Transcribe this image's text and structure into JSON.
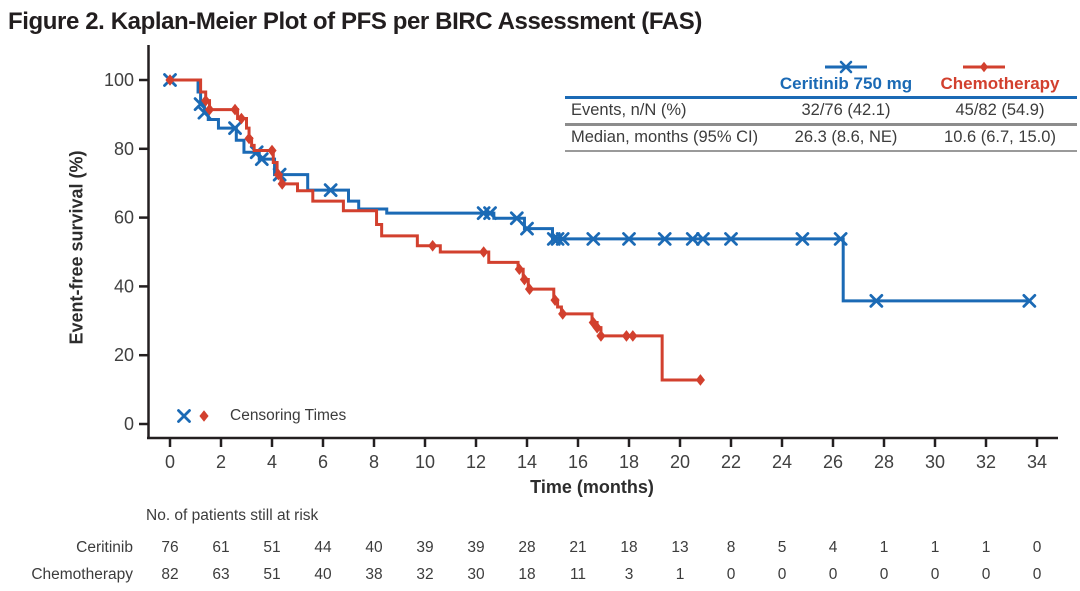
{
  "figure": {
    "title": "Figure 2. Kaplan-Meier Plot of PFS per BIRC Assessment (FAS)"
  },
  "colors": {
    "ceritinib_blue": "#1b6ab5",
    "chemotherapy_red": "#d2402e",
    "axis_black": "#231f20",
    "text_dark": "#3c3c3c",
    "rule_gray": "#8c8c8c"
  },
  "chart_data": {
    "type": "line",
    "subtype": "kaplan-meier-step",
    "title": "Figure 2. Kaplan-Meier Plot of PFS per BIRC Assessment (FAS)",
    "xlabel": "Time (months)",
    "ylabel": "Event-free survival (%)",
    "xlim": [
      0,
      34
    ],
    "ylim": [
      0,
      100
    ],
    "xticks": [
      0,
      2,
      4,
      6,
      8,
      10,
      12,
      14,
      16,
      18,
      20,
      22,
      24,
      26,
      28,
      30,
      32,
      34
    ],
    "yticks": [
      0,
      20,
      40,
      60,
      80,
      100
    ],
    "grid": false,
    "censoring_legend_label": "Censoring Times",
    "series": [
      {
        "name": "Ceritinib 750 mg",
        "color": "#1b6ab5",
        "marker": "x",
        "steps": [
          [
            0,
            100
          ],
          [
            1.1,
            96.5
          ],
          [
            1.2,
            93
          ],
          [
            1.35,
            90.5
          ],
          [
            1.5,
            88.5
          ],
          [
            1.9,
            86
          ],
          [
            2.6,
            82.5
          ],
          [
            2.9,
            79
          ],
          [
            3.5,
            77
          ],
          [
            4.1,
            72.5
          ],
          [
            5.4,
            68
          ],
          [
            7.0,
            64.8
          ],
          [
            7.4,
            62.5
          ],
          [
            8.5,
            61.3
          ],
          [
            12.7,
            59.8
          ],
          [
            13.9,
            56.8
          ],
          [
            15.0,
            53.8
          ],
          [
            26.4,
            35.8
          ],
          [
            33.7,
            35.8
          ]
        ],
        "censor_points": [
          [
            0,
            100
          ],
          [
            1.2,
            93
          ],
          [
            1.35,
            90.5
          ],
          [
            2.55,
            86
          ],
          [
            3.4,
            79
          ],
          [
            3.6,
            77
          ],
          [
            4.3,
            72.5
          ],
          [
            6.3,
            68
          ],
          [
            12.3,
            61.3
          ],
          [
            12.55,
            61.3
          ],
          [
            13.6,
            59.8
          ],
          [
            14.0,
            56.8
          ],
          [
            15.05,
            53.8
          ],
          [
            15.2,
            53.8
          ],
          [
            15.4,
            53.8
          ],
          [
            16.6,
            53.8
          ],
          [
            18.0,
            53.8
          ],
          [
            19.4,
            53.8
          ],
          [
            20.5,
            53.8
          ],
          [
            20.9,
            53.8
          ],
          [
            22.0,
            53.8
          ],
          [
            24.8,
            53.8
          ],
          [
            26.3,
            53.8
          ],
          [
            27.7,
            35.8
          ],
          [
            33.7,
            35.8
          ]
        ]
      },
      {
        "name": "Chemotherapy",
        "color": "#d2402e",
        "marker": "diamond",
        "steps": [
          [
            0,
            100
          ],
          [
            1.2,
            96.5
          ],
          [
            1.4,
            94
          ],
          [
            1.55,
            91.4
          ],
          [
            2.65,
            88.8
          ],
          [
            3.0,
            86
          ],
          [
            3.1,
            83
          ],
          [
            3.2,
            81
          ],
          [
            3.3,
            79.5
          ],
          [
            4.05,
            76
          ],
          [
            4.2,
            72.5
          ],
          [
            4.35,
            69.8
          ],
          [
            5.0,
            67.8
          ],
          [
            5.6,
            64.8
          ],
          [
            6.8,
            62
          ],
          [
            8.1,
            58
          ],
          [
            8.3,
            54.7
          ],
          [
            9.7,
            51.8
          ],
          [
            10.6,
            50
          ],
          [
            12.5,
            47
          ],
          [
            13.65,
            45
          ],
          [
            13.85,
            42
          ],
          [
            14.05,
            39.2
          ],
          [
            15.05,
            36
          ],
          [
            15.2,
            34
          ],
          [
            15.35,
            32
          ],
          [
            16.55,
            29.5
          ],
          [
            16.75,
            28
          ],
          [
            16.9,
            25.6
          ],
          [
            19.3,
            12.8
          ],
          [
            20.8,
            12.8
          ]
        ],
        "censor_points": [
          [
            0,
            100
          ],
          [
            1.4,
            94
          ],
          [
            1.55,
            91.4
          ],
          [
            2.55,
            91.4
          ],
          [
            2.8,
            88.8
          ],
          [
            3.1,
            83
          ],
          [
            4.0,
            79.5
          ],
          [
            4.25,
            72.5
          ],
          [
            4.4,
            69.8
          ],
          [
            10.3,
            51.8
          ],
          [
            12.3,
            50
          ],
          [
            13.7,
            45
          ],
          [
            13.9,
            42
          ],
          [
            14.1,
            39.2
          ],
          [
            15.1,
            36
          ],
          [
            15.4,
            32
          ],
          [
            16.6,
            29.5
          ],
          [
            16.75,
            28
          ],
          [
            16.9,
            25.6
          ],
          [
            17.9,
            25.6
          ],
          [
            18.15,
            25.6
          ],
          [
            20.8,
            12.8
          ]
        ]
      }
    ]
  },
  "stats_table": {
    "rows": [
      {
        "label": "Events, n/N (%)",
        "values": [
          "32/76 (42.1)",
          "45/82 (54.9)"
        ]
      },
      {
        "label": "Median, months (95% CI)",
        "values": [
          "26.3 (8.6, NE)",
          "10.6 (6.7, 15.0)"
        ]
      }
    ]
  },
  "at_risk": {
    "header": "No. of patients still at risk",
    "times": [
      0,
      2,
      4,
      6,
      8,
      10,
      12,
      14,
      16,
      18,
      20,
      22,
      24,
      26,
      28,
      30,
      32,
      34
    ],
    "rows": [
      {
        "label": "Ceritinib",
        "values": [
          76,
          61,
          51,
          44,
          40,
          39,
          39,
          28,
          21,
          18,
          13,
          8,
          5,
          4,
          1,
          1,
          1,
          0
        ]
      },
      {
        "label": "Chemotherapy",
        "values": [
          82,
          63,
          51,
          40,
          38,
          32,
          30,
          18,
          11,
          3,
          1,
          0,
          0,
          0,
          0,
          0,
          0,
          0
        ]
      }
    ]
  }
}
